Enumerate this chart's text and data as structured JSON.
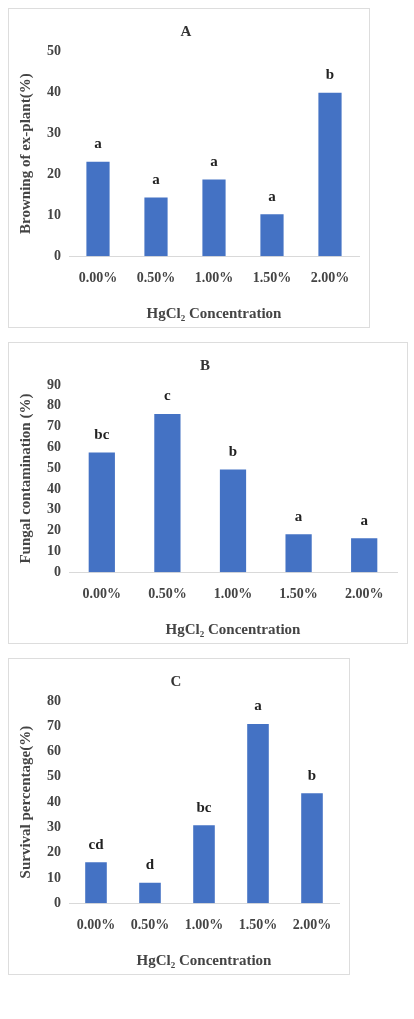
{
  "chart_data": [
    {
      "type": "bar",
      "title": "A",
      "xlabel": "HgCl₂ Concentration",
      "ylabel": "Browning of ex-plant(%)",
      "categories": [
        "0.00%",
        "0.50%",
        "1.00%",
        "1.50%",
        "2.00%"
      ],
      "values": [
        23,
        14.3,
        18.7,
        10.2,
        39.8
      ],
      "color": "#4472c4",
      "ylim": [
        0,
        50
      ],
      "yticks": [
        0,
        10,
        20,
        30,
        40,
        50
      ],
      "grid": false,
      "legend": false,
      "annotations": [
        {
          "text": "a",
          "x": "0.00%",
          "y": 23
        },
        {
          "text": "a",
          "x": "0.50%",
          "y": 14.3
        },
        {
          "text": "a",
          "x": "1.00%",
          "y": 18.7
        },
        {
          "text": "a",
          "x": "1.50%",
          "y": 10.2
        },
        {
          "text": "b",
          "x": "2.00%",
          "y": 39.8
        }
      ]
    },
    {
      "type": "bar",
      "title": "B",
      "xlabel": "HgCl₂ Concentration",
      "ylabel": "Fungal contamination (%)",
      "categories": [
        "0.00%",
        "0.50%",
        "1.00%",
        "1.50%",
        "2.00%"
      ],
      "values": [
        57.5,
        76,
        49.4,
        18.3,
        16.3
      ],
      "color": "#4472c4",
      "ylim": [
        0,
        90
      ],
      "yticks": [
        0,
        10,
        20,
        30,
        40,
        50,
        60,
        70,
        80,
        90
      ],
      "grid": false,
      "legend": false,
      "annotations": [
        {
          "text": "bc",
          "x": "0.00%",
          "y": 57.5
        },
        {
          "text": "c",
          "x": "0.50%",
          "y": 76
        },
        {
          "text": "b",
          "x": "1.00%",
          "y": 49.4
        },
        {
          "text": "a",
          "x": "1.50%",
          "y": 18.3
        },
        {
          "text": "a",
          "x": "2.00%",
          "y": 16.3
        }
      ]
    },
    {
      "type": "bar",
      "title": "C",
      "xlabel": "HgCl₂ Concentration",
      "ylabel": "Survival percentage(%)",
      "categories": [
        "0.00%",
        "0.50%",
        "1.00%",
        "1.50%",
        "2.00%"
      ],
      "values": [
        16.2,
        8.1,
        30.8,
        70.9,
        43.5
      ],
      "color": "#4472c4",
      "ylim": [
        0,
        80
      ],
      "yticks": [
        0,
        10,
        20,
        30,
        40,
        50,
        60,
        70,
        80
      ],
      "grid": false,
      "legend": false,
      "annotations": [
        {
          "text": "cd",
          "x": "0.00%",
          "y": 16.2
        },
        {
          "text": "d",
          "x": "0.50%",
          "y": 8.1
        },
        {
          "text": "bc",
          "x": "1.00%",
          "y": 30.8
        },
        {
          "text": "a",
          "x": "1.50%",
          "y": 70.9
        },
        {
          "text": "b",
          "x": "2.00%",
          "y": 43.5
        }
      ]
    }
  ]
}
